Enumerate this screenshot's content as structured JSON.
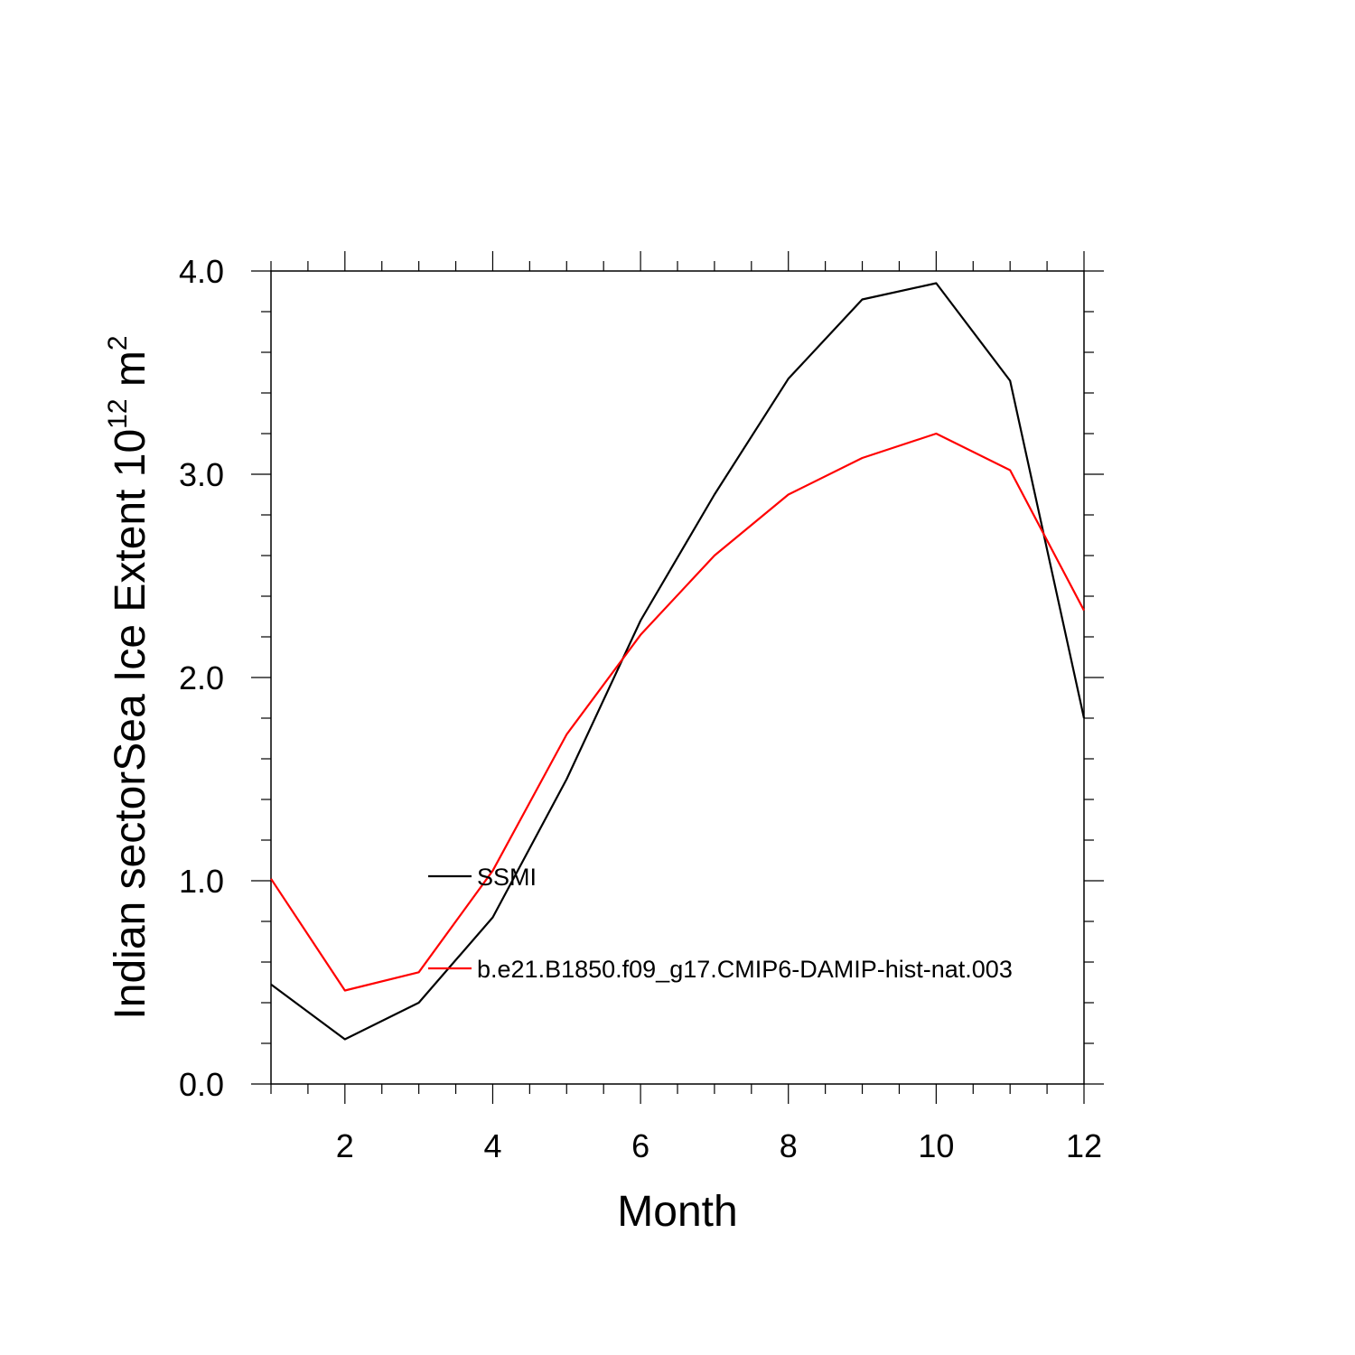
{
  "chart_data": {
    "type": "line",
    "xlabel": "Month",
    "ylabel": {
      "prefix": "Indian sectorSea Ice Extent 10",
      "exponent1": "12",
      "unit": " m",
      "exponent2": "2"
    },
    "xlim": [
      1,
      12
    ],
    "ylim": [
      0,
      4
    ],
    "x_ticks": [
      2,
      4,
      6,
      8,
      10,
      12
    ],
    "x_tick_labels": [
      "2",
      "4",
      "6",
      "8",
      "10",
      "12"
    ],
    "y_ticks": [
      0,
      1,
      2,
      3,
      4
    ],
    "y_tick_labels": [
      "0.0",
      "1.0",
      "2.0",
      "3.0",
      "4.0"
    ],
    "x": [
      1,
      2,
      3,
      4,
      5,
      6,
      7,
      8,
      9,
      10,
      11,
      12
    ],
    "series": [
      {
        "name": "SSMI",
        "color": "#000000",
        "values": [
          0.49,
          0.22,
          0.4,
          0.82,
          1.5,
          2.28,
          2.9,
          3.47,
          3.86,
          3.94,
          3.46,
          1.8
        ]
      },
      {
        "name": "b.e21.B1850.f09_g17.CMIP6-DAMIP-hist-nat.003",
        "color": "#ff0000",
        "values": [
          1.01,
          0.46,
          0.55,
          1.05,
          1.72,
          2.21,
          2.6,
          2.9,
          3.08,
          3.2,
          3.02,
          2.33
        ]
      }
    ],
    "legend_position": "inside-lower-center",
    "grid": false
  }
}
